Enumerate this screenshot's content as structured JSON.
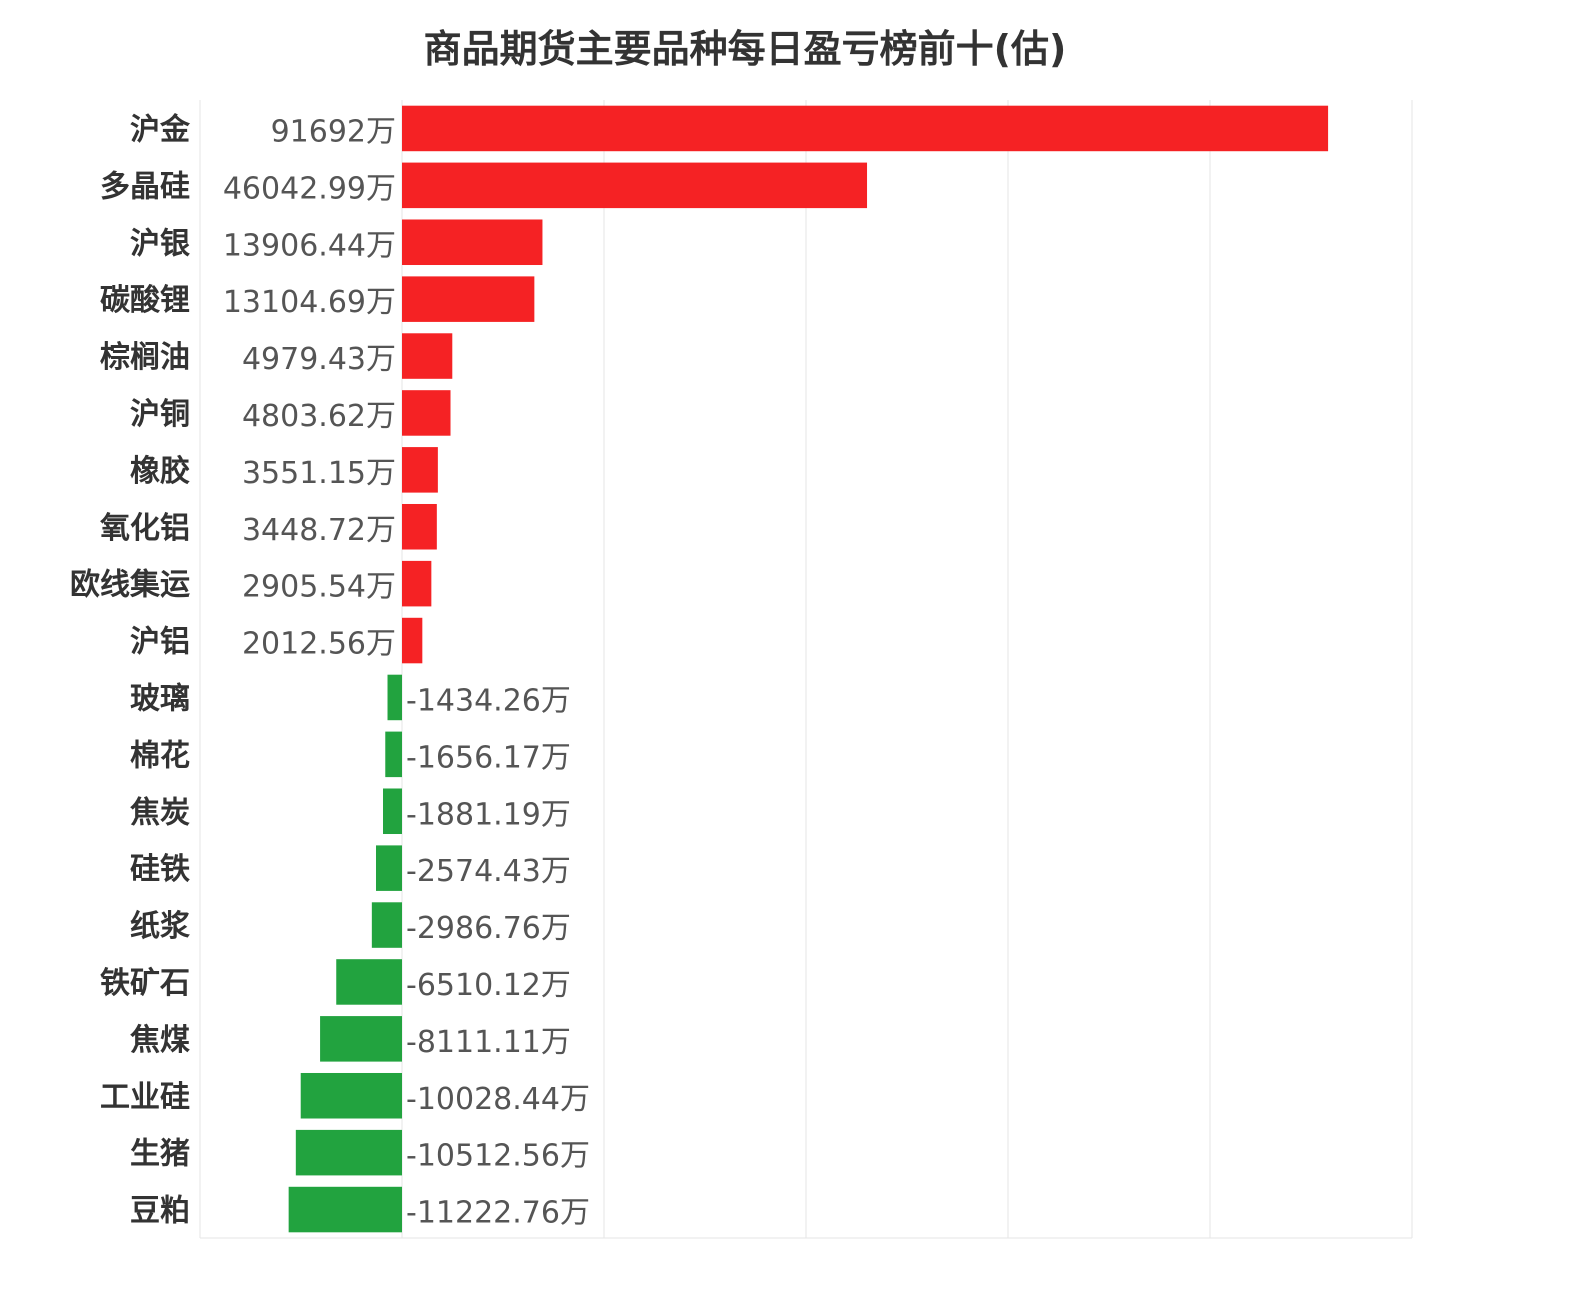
{
  "chart_data": {
    "type": "bar",
    "orientation": "horizontal",
    "title": "商品期货主要品种每日盈亏榜前十(估)",
    "categories": [
      "沪金",
      "多晶硅",
      "沪银",
      "碳酸锂",
      "棕榈油",
      "沪铜",
      "橡胶",
      "氧化铝",
      "欧线集运",
      "沪铝",
      "玻璃",
      "棉花",
      "焦炭",
      "硅铁",
      "纸浆",
      "铁矿石",
      "焦煤",
      "工业硅",
      "生猪",
      "豆粕"
    ],
    "values": [
      91692,
      46042.99,
      13906.44,
      13104.69,
      4979.43,
      4803.62,
      3551.15,
      3448.72,
      2905.54,
      2012.56,
      -1434.26,
      -1656.17,
      -1881.19,
      -2574.43,
      -2986.76,
      -6510.12,
      -8111.11,
      -10028.44,
      -10512.56,
      -11222.76
    ],
    "value_labels": [
      "91692万",
      "46042.99万",
      "13906.44万",
      "13104.69万",
      "4979.43万",
      "4803.62万",
      "3551.15万",
      "3448.72万",
      "2905.54万",
      "2012.56万",
      "-1434.26万",
      "-1656.17万",
      "-1881.19万",
      "-2574.43万",
      "-2986.76万",
      "-6510.12万",
      "-8111.11万",
      "-10028.44万",
      "-10512.56万",
      "-11222.76万"
    ],
    "unit": "万",
    "xlim": [
      -20000,
      100000
    ],
    "grid": true,
    "legend": "none",
    "colors": {
      "positive": "#f52224",
      "negative": "#22a33f",
      "grid": "#e6e6e6"
    }
  }
}
